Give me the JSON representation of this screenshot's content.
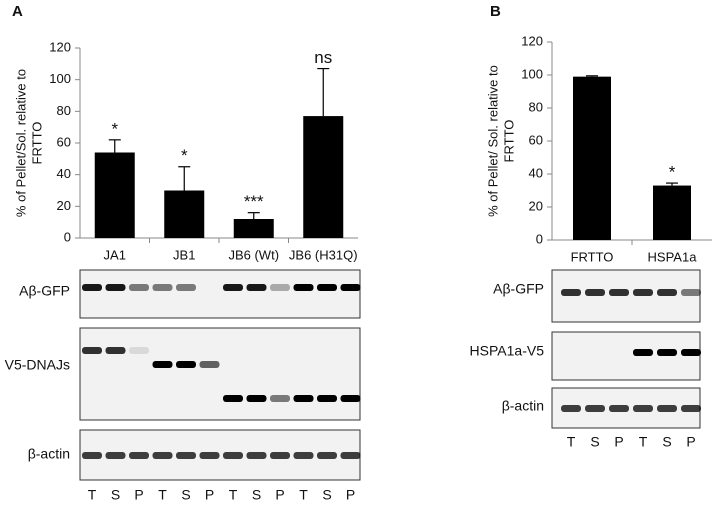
{
  "chart_data": [
    {
      "type": "bar",
      "panel": "A",
      "ylabel": [
        "% of Pellet/Sol. relative to",
        "FRTTO"
      ],
      "categories": [
        "JA1",
        "JB1",
        "JB6 (Wt)",
        "JB6 (H31Q)"
      ],
      "values": [
        54,
        30,
        12,
        77
      ],
      "errors": [
        8,
        15,
        4,
        30
      ],
      "annotations": [
        "*",
        "*",
        "***",
        "ns"
      ],
      "color": "#000000",
      "ylim": [
        0,
        120
      ],
      "yticks": [
        0,
        20,
        40,
        60,
        80,
        100,
        120
      ]
    },
    {
      "type": "bar",
      "panel": "B",
      "ylabel": [
        "% of Pellet/ Sol. relative to",
        "FRTTO"
      ],
      "categories": [
        "FRTTO",
        "HSPA1a"
      ],
      "values": [
        99,
        33
      ],
      "errors": [
        0.5,
        1.5
      ],
      "annotations": [
        null,
        "*"
      ],
      "color": "#000000",
      "ylim": [
        0,
        120
      ],
      "yticks": [
        0,
        20,
        40,
        60,
        80,
        100,
        120
      ]
    }
  ],
  "blots_a": {
    "rows": [
      "Aβ-GFP",
      "V5-DNAJs",
      "β-actin"
    ],
    "lanes": [
      "T",
      "S",
      "P",
      "T",
      "S",
      "P",
      "T",
      "S",
      "P",
      "T",
      "S",
      "P"
    ]
  },
  "blots_b": {
    "rows": [
      "Aβ-GFP",
      "HSPA1a-V5",
      "β-actin"
    ],
    "lanes": [
      "T",
      "S",
      "P",
      "T",
      "S",
      "P"
    ]
  }
}
